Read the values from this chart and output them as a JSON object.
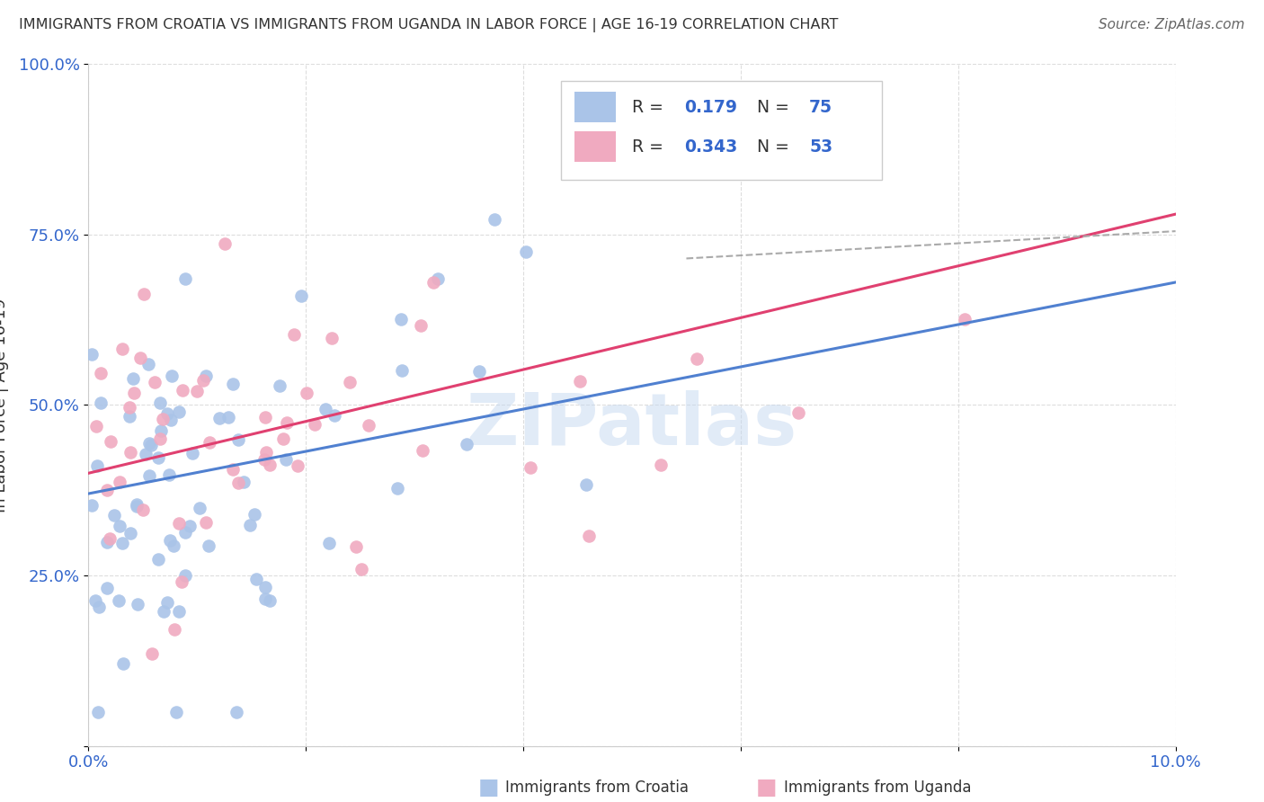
{
  "title": "IMMIGRANTS FROM CROATIA VS IMMIGRANTS FROM UGANDA IN LABOR FORCE | AGE 16-19 CORRELATION CHART",
  "source": "Source: ZipAtlas.com",
  "ylabel": "In Labor Force | Age 16-19",
  "croatia_R": 0.179,
  "croatia_N": 75,
  "uganda_R": 0.343,
  "uganda_N": 53,
  "watermark": "ZIPatlas",
  "croatia_color": "#aac4e8",
  "uganda_color": "#f0aac0",
  "croatia_line_color": "#5080d0",
  "uganda_line_color": "#e04070",
  "dash_color": "#aaaaaa",
  "xlim": [
    0.0,
    0.1
  ],
  "ylim": [
    0.0,
    1.0
  ],
  "background_color": "#ffffff",
  "grid_color": "#dddddd",
  "tick_color": "#3366cc",
  "legend_text_color": "#3366cc",
  "legend_label_color": "#333333",
  "title_color": "#333333",
  "source_color": "#666666",
  "ylabel_color": "#333333"
}
